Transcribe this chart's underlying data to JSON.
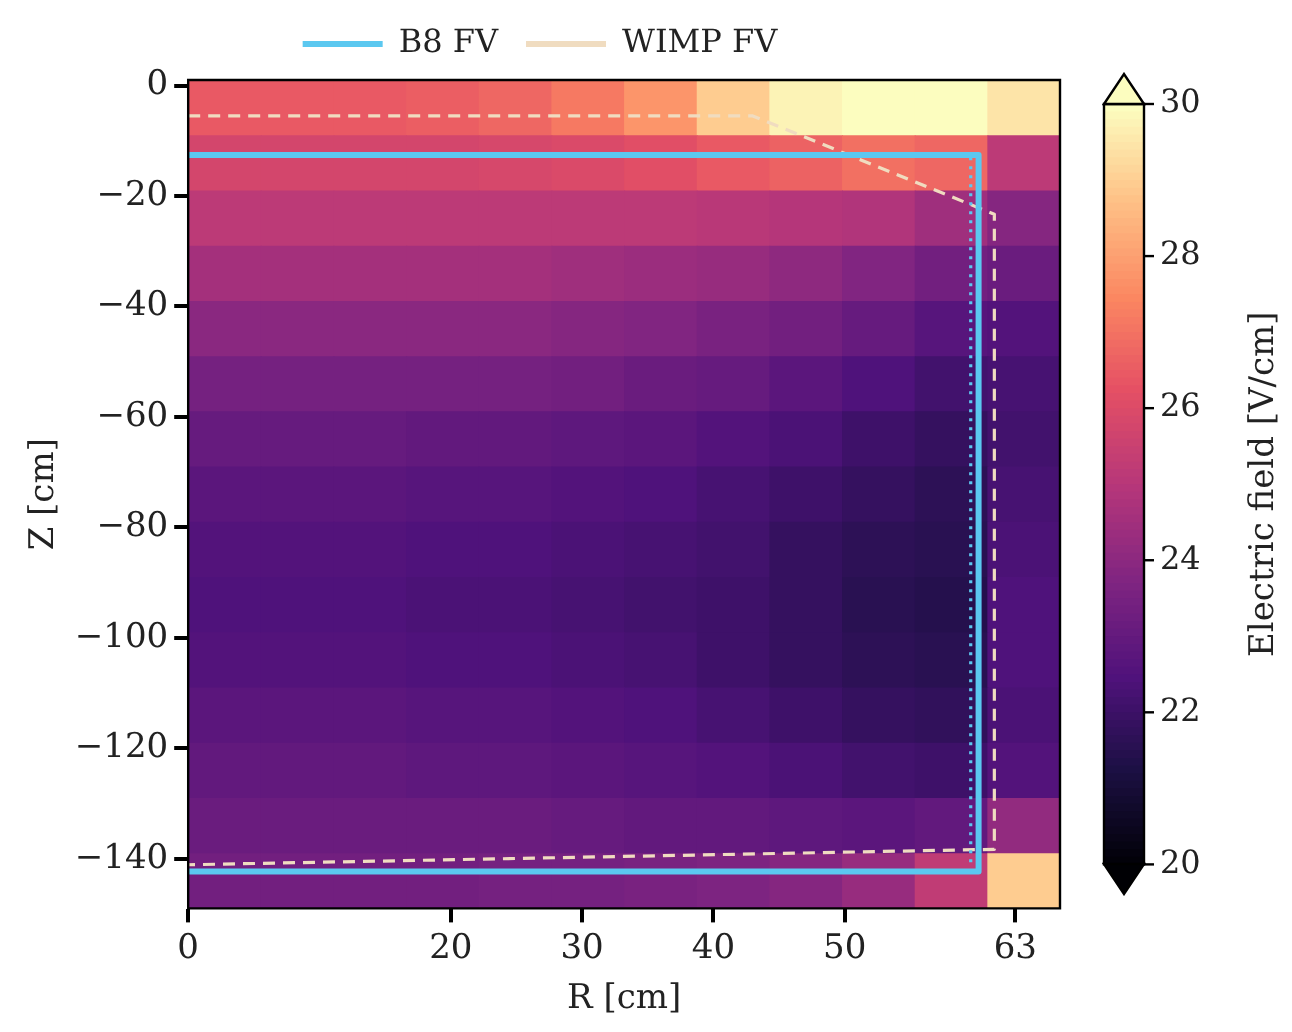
{
  "chart_data": {
    "type": "heatmap",
    "xlabel": "R [cm]",
    "ylabel": "Z [cm]",
    "clabel": "Electric field [V/cm]",
    "cells": [
      [
        26.5,
        26.5,
        26.5,
        26.6,
        26.8,
        27.2,
        27.8,
        29,
        29.8,
        30,
        30,
        29.5
      ],
      [
        25.8,
        25.8,
        25.8,
        25.8,
        25.9,
        26,
        26.2,
        26.5,
        26.7,
        27,
        26.8,
        25.2
      ],
      [
        25.2,
        25.2,
        25.2,
        25.2,
        25.2,
        25.2,
        25.2,
        25.1,
        25,
        24.9,
        24.5,
        23.9
      ],
      [
        24.6,
        24.6,
        24.6,
        24.6,
        24.6,
        24.5,
        24.4,
        24.3,
        24.1,
        23.8,
        23.4,
        23.2
      ],
      [
        24,
        24,
        24,
        24,
        24,
        23.9,
        23.8,
        23.6,
        23.4,
        23.1,
        22.7,
        22.6
      ],
      [
        23.5,
        23.5,
        23.5,
        23.5,
        23.5,
        23.4,
        23.2,
        23.1,
        22.8,
        22.5,
        22.2,
        22.3
      ],
      [
        23.1,
        23.1,
        23.1,
        23,
        23,
        22.9,
        22.8,
        22.6,
        22.4,
        22.1,
        21.9,
        22.2
      ],
      [
        22.8,
        22.8,
        22.8,
        22.7,
        22.7,
        22.6,
        22.5,
        22.3,
        22.1,
        21.9,
        21.7,
        22.3
      ],
      [
        22.6,
        22.6,
        22.6,
        22.5,
        22.5,
        22.4,
        22.3,
        22.2,
        21.9,
        21.7,
        21.6,
        22.4
      ],
      [
        22.5,
        22.5,
        22.5,
        22.4,
        22.4,
        22.3,
        22.2,
        22.1,
        21.9,
        21.6,
        21.5,
        22.5
      ],
      [
        22.6,
        22.6,
        22.6,
        22.5,
        22.5,
        22.4,
        22.3,
        22.1,
        21.9,
        21.7,
        21.6,
        22.5
      ],
      [
        22.8,
        22.8,
        22.8,
        22.7,
        22.7,
        22.6,
        22.5,
        22.3,
        22.1,
        21.9,
        21.8,
        22.4
      ],
      [
        23,
        23,
        23,
        22.9,
        22.9,
        22.8,
        22.7,
        22.6,
        22.4,
        22.2,
        22.1,
        22.6
      ],
      [
        23.2,
        23.2,
        23.2,
        23.2,
        23.2,
        23.1,
        23,
        23,
        22.9,
        22.8,
        23,
        24.2
      ],
      [
        23.4,
        23.4,
        23.4,
        23.4,
        23.5,
        23.5,
        23.6,
        23.7,
        23.9,
        24.3,
        25.3,
        29
      ]
    ],
    "clim": [
      20,
      30
    ],
    "cticks": [
      20,
      22,
      24,
      26,
      28,
      30
    ],
    "xlim": [
      0,
      66.4
    ],
    "xticks": [
      0,
      20,
      30,
      40,
      50,
      63
    ],
    "ylim": [
      -149,
      1
    ],
    "yticks": [
      0,
      {
        "value": -20,
        "label": "−20"
      },
      {
        "value": -40,
        "label": "−40"
      },
      {
        "value": -60,
        "label": "−60"
      },
      {
        "value": -80,
        "label": "−80"
      },
      {
        "value": -100,
        "label": "−100"
      },
      {
        "value": -120,
        "label": "−120"
      },
      {
        "value": -140,
        "label": "−140"
      }
    ],
    "legend": "top",
    "series": [
      {
        "type": "line",
        "name": "B8 FV",
        "color": "#5bc8f0",
        "line_style": "solid",
        "x": [
          0,
          60.2,
          60.2,
          0
        ],
        "values": [
          -12.6,
          -12.6,
          -142.3,
          -142.3
        ]
      },
      {
        "type": "line",
        "color": "#5bc8f0",
        "line_style": "dotted",
        "x": [
          59.6,
          59.6
        ],
        "values": [
          -13,
          -141
        ]
      },
      {
        "type": "line",
        "name": "WIMP FV",
        "color": "#f0dcc0",
        "line_style": "dashed",
        "x": [
          0,
          43,
          61.4,
          61.4,
          0
        ],
        "values": [
          -5.5,
          -5.5,
          -23.3,
          -138.3,
          -141.1
        ]
      }
    ]
  }
}
